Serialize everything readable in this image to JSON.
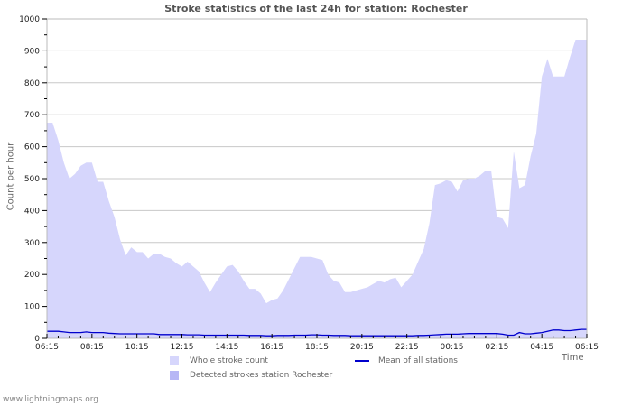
{
  "title": "Stroke statistics of the last 24h for station: Rochester",
  "watermark": "www.lightningmaps.org",
  "colors": {
    "whole_fill": "#d6d6fc",
    "detected_fill": "#b6b6f5",
    "mean_line": "#0000cc",
    "grid": "#c8c8c8",
    "axis": "#bbbbbb"
  },
  "legend": [
    {
      "key": "whole",
      "label": "Whole stroke count",
      "type": "swatch",
      "color": "#d6d6fc"
    },
    {
      "key": "detected",
      "label": "Detected strokes station Rochester",
      "type": "swatch",
      "color": "#b6b6f5"
    },
    {
      "key": "mean",
      "label": "Mean of all stations",
      "type": "line",
      "color": "#0000cc"
    }
  ],
  "chart_data": {
    "type": "area",
    "title": "Stroke statistics of the last 24h for station: Rochester",
    "xlabel": "Time",
    "ylabel": "Count per hour",
    "ylim": [
      0,
      1000
    ],
    "yticks": [
      0,
      100,
      200,
      300,
      400,
      500,
      600,
      700,
      800,
      900,
      1000
    ],
    "xticks": [
      "06:15",
      "08:15",
      "10:15",
      "12:15",
      "14:15",
      "16:15",
      "18:15",
      "20:15",
      "22:15",
      "00:15",
      "02:15",
      "04:15",
      "06:15"
    ],
    "grid": true,
    "legend_position": "bottom",
    "x_hours": [
      0,
      0.25,
      0.5,
      0.75,
      1,
      1.25,
      1.5,
      1.75,
      2,
      2.25,
      2.5,
      2.75,
      3,
      3.25,
      3.5,
      3.75,
      4,
      4.25,
      4.5,
      4.75,
      5,
      5.25,
      5.5,
      5.75,
      6,
      6.25,
      6.5,
      6.75,
      7,
      7.25,
      7.5,
      7.75,
      8,
      8.25,
      8.5,
      8.75,
      9,
      9.25,
      9.5,
      9.75,
      10,
      10.25,
      10.5,
      10.75,
      11,
      11.25,
      11.5,
      11.75,
      12,
      12.25,
      12.5,
      12.75,
      13,
      13.25,
      13.5,
      13.75,
      14,
      14.25,
      14.5,
      14.75,
      15,
      15.25,
      15.5,
      15.75,
      16,
      16.25,
      16.5,
      16.75,
      17,
      17.25,
      17.5,
      17.75,
      18,
      18.25,
      18.5,
      18.75,
      19,
      19.25,
      19.5,
      19.75,
      20,
      20.25,
      20.5,
      20.75,
      21,
      21.25,
      21.5,
      21.75,
      22,
      22.25,
      22.5,
      22.75,
      23,
      23.25,
      23.5,
      23.75,
      24
    ],
    "series": [
      {
        "name": "Whole stroke count",
        "values": [
          675,
          675,
          620,
          550,
          500,
          515,
          540,
          550,
          550,
          490,
          490,
          430,
          380,
          310,
          260,
          285,
          270,
          270,
          250,
          265,
          265,
          255,
          250,
          235,
          225,
          240,
          225,
          210,
          175,
          145,
          175,
          200,
          225,
          230,
          210,
          180,
          155,
          155,
          140,
          110,
          120,
          125,
          150,
          185,
          220,
          255,
          255,
          255,
          250,
          245,
          200,
          180,
          175,
          145,
          145,
          150,
          155,
          160,
          170,
          180,
          175,
          185,
          190,
          160,
          180,
          200,
          240,
          280,
          360,
          480,
          485,
          495,
          490,
          460,
          495,
          500,
          500,
          510,
          525,
          525,
          380,
          375,
          345,
          585,
          470,
          480,
          570,
          640,
          820,
          875,
          820,
          820,
          820,
          880,
          935,
          935,
          935
        ],
        "color": "#d6d6fc"
      },
      {
        "name": "Detected strokes station Rochester",
        "values": [],
        "color": "#b6b6f5"
      },
      {
        "name": "Mean of all stations",
        "values": [
          22,
          22,
          22,
          20,
          18,
          18,
          18,
          20,
          18,
          18,
          18,
          16,
          15,
          14,
          14,
          14,
          14,
          14,
          14,
          14,
          12,
          12,
          12,
          12,
          12,
          11,
          11,
          11,
          10,
          10,
          10,
          10,
          10,
          10,
          10,
          10,
          9,
          9,
          9,
          8,
          8,
          9,
          9,
          9,
          10,
          10,
          10,
          11,
          11,
          10,
          10,
          9,
          9,
          9,
          8,
          8,
          8,
          8,
          8,
          8,
          8,
          8,
          8,
          8,
          8,
          8,
          9,
          9,
          10,
          11,
          12,
          13,
          13,
          13,
          14,
          15,
          15,
          15,
          15,
          15,
          15,
          13,
          10,
          10,
          18,
          14,
          14,
          16,
          18,
          22,
          26,
          26,
          24,
          24,
          26,
          28,
          28
        ],
        "color": "#0000cc"
      }
    ]
  }
}
